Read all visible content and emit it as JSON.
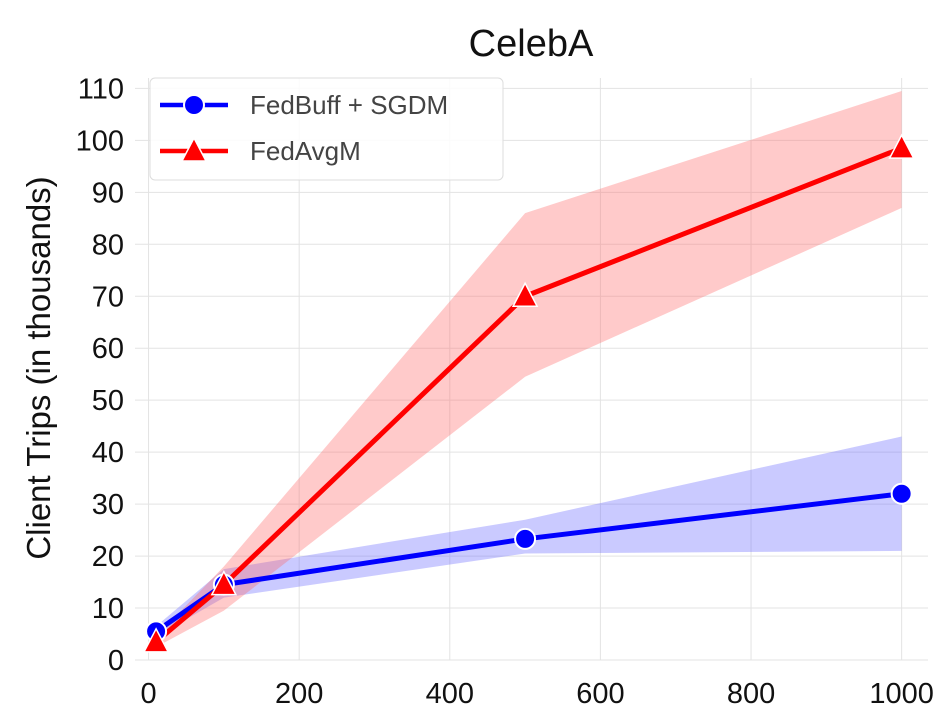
{
  "chart_data": {
    "type": "line",
    "title": "CelebA",
    "xlabel": "",
    "ylabel": "Client Trips (in thousands)",
    "xlim": [
      -18,
      1035
    ],
    "ylim": [
      0,
      112
    ],
    "xticks": [
      0,
      200,
      400,
      600,
      800,
      1000
    ],
    "yticks": [
      0,
      10,
      20,
      30,
      40,
      50,
      60,
      70,
      80,
      90,
      100,
      110
    ],
    "grid": true,
    "legend_position": "top-left",
    "series": [
      {
        "name": "FedBuff + SGDM",
        "color": "#0000ff",
        "band_color": "#6666ff",
        "marker": "circle",
        "x": [
          10,
          100,
          500,
          1000
        ],
        "y": [
          5.5,
          14.5,
          23.3,
          32.0
        ],
        "lower": [
          4.5,
          12.0,
          20.5,
          21.0
        ],
        "upper": [
          6.5,
          17.5,
          27.0,
          43.0
        ]
      },
      {
        "name": "FedAvgM",
        "color": "#ff0000",
        "band_color": "#ff6666",
        "marker": "triangle",
        "x": [
          10,
          100,
          500,
          1000
        ],
        "y": [
          3.5,
          14.5,
          70.0,
          98.5
        ],
        "lower": [
          2.5,
          9.5,
          54.5,
          87.0
        ],
        "upper": [
          4.5,
          18.0,
          86.0,
          109.5
        ]
      }
    ]
  }
}
